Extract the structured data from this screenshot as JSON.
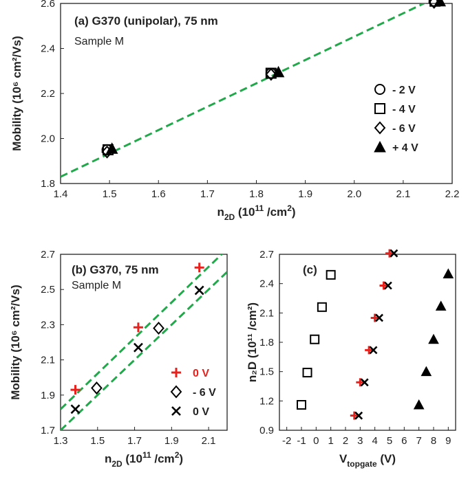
{
  "colors": {
    "fit": "#21a84a",
    "red": "#e8211d",
    "black": "#000000",
    "axis": "#222222"
  },
  "chart_data": [
    {
      "type": "scatter",
      "id": "a",
      "title": "(a)  G370 (unipolar), 75 nm",
      "subtitle": "Sample M",
      "xlabel_main": "n",
      "xlabel_sub": "2D",
      "xlabel_rest": " (10",
      "xlabel_sup": "11",
      "xlabel_end": " /cm",
      "xlabel_sup2": "2",
      "xlabel_close": ")",
      "ylabel": "Mobility (10⁶ cm²/Vs)",
      "xlim": [
        1.4,
        2.2
      ],
      "ylim": [
        1.8,
        2.6
      ],
      "xticks": [
        "1.4",
        "1.5",
        "1.6",
        "1.7",
        "1.8",
        "1.9",
        "2.0",
        "2.1",
        "2.2"
      ],
      "yticks": [
        "1.8",
        "2.0",
        "2.2",
        "2.4",
        "2.6"
      ],
      "legend_position": "right",
      "series": [
        {
          "name": "- 2 V",
          "marker": "circle",
          "x": [
            1.495,
            1.83,
            2.163
          ],
          "y": [
            1.95,
            2.29,
            2.61
          ]
        },
        {
          "name": "- 4 V",
          "marker": "square",
          "x": [
            1.497,
            1.83,
            2.165
          ],
          "y": [
            1.95,
            2.29,
            2.61
          ]
        },
        {
          "name": "- 6 V",
          "marker": "diamond",
          "x": [
            1.495,
            1.83,
            2.163
          ],
          "y": [
            1.94,
            2.285,
            2.605
          ]
        },
        {
          "name": "+ 4 V",
          "marker": "triangle",
          "x": [
            1.505,
            1.845,
            2.175
          ],
          "y": [
            1.955,
            2.295,
            2.61
          ]
        }
      ],
      "fit_line": {
        "x": [
          1.4,
          2.2
        ],
        "y": [
          1.83,
          2.66
        ]
      }
    },
    {
      "type": "scatter",
      "id": "b",
      "title": "(b)  G370, 75 nm",
      "subtitle": "Sample M",
      "xlabel_main": "n",
      "xlabel_sub": "2D",
      "xlabel_rest": " (10",
      "xlabel_sup": "11",
      "xlabel_end": " /cm",
      "xlabel_sup2": "2",
      "xlabel_close": ")",
      "ylabel": "Mobility (10⁶ cm²/Vs)",
      "xlim": [
        1.3,
        2.2
      ],
      "ylim": [
        1.7,
        2.7
      ],
      "xticks": [
        "1.3",
        "1.5",
        "1.7",
        "1.9",
        "2.1"
      ],
      "yticks": [
        "1.7",
        "1.9",
        "2.1",
        "2.3",
        "2.5",
        "2.7"
      ],
      "legend_position": "bottom-right",
      "series": [
        {
          "name": "0 V",
          "marker": "plus",
          "color": "red",
          "x": [
            1.38,
            1.72,
            2.05
          ],
          "y": [
            1.93,
            2.285,
            2.625
          ]
        },
        {
          "name": "- 6 V",
          "marker": "diamond",
          "x": [
            1.495,
            1.83
          ],
          "y": [
            1.94,
            2.28
          ]
        },
        {
          "name": "0 V",
          "marker": "x",
          "x": [
            1.38,
            1.72,
            2.05
          ],
          "y": [
            1.82,
            2.17,
            2.495
          ]
        }
      ],
      "fit_lines": [
        {
          "x": [
            1.3,
            2.2
          ],
          "y": [
            1.82,
            2.73
          ]
        },
        {
          "x": [
            1.3,
            2.2
          ],
          "y": [
            1.7,
            2.6
          ]
        }
      ]
    },
    {
      "type": "scatter",
      "id": "c",
      "title": "(c)",
      "xlabel_main": "V",
      "xlabel_sub": "topgate",
      "xlabel_rest": " (V)",
      "ylabel": "n₂D (10¹¹ /cm²)",
      "xlim": [
        -2.5,
        9.5
      ],
      "ylim": [
        0.9,
        2.7
      ],
      "xticks": [
        "-2",
        "-1",
        "0",
        "1",
        "2",
        "3",
        "4",
        "5",
        "6",
        "7",
        "8",
        "9"
      ],
      "yticks": [
        "0.9",
        "1.2",
        "1.5",
        "1.8",
        "2.1",
        "2.4",
        "2.7"
      ],
      "series": [
        {
          "marker": "square",
          "x": [
            -1.0,
            -0.6,
            -0.1,
            0.4,
            1.0
          ],
          "y": [
            1.16,
            1.49,
            1.83,
            2.16,
            2.49
          ]
        },
        {
          "marker": "plus",
          "color": "red",
          "x": [
            2.6,
            3.0,
            3.6,
            4.0,
            4.6,
            5.0
          ],
          "y": [
            1.05,
            1.39,
            1.72,
            2.05,
            2.38,
            2.71
          ]
        },
        {
          "marker": "x",
          "x": [
            2.9,
            3.3,
            3.9,
            4.3,
            4.9,
            5.3
          ],
          "y": [
            1.05,
            1.39,
            1.72,
            2.05,
            2.38,
            2.71
          ]
        },
        {
          "marker": "triangle",
          "x": [
            7.0,
            7.5,
            8.0,
            8.5,
            9.0
          ],
          "y": [
            1.16,
            1.5,
            1.83,
            2.17,
            2.5
          ]
        }
      ]
    }
  ]
}
